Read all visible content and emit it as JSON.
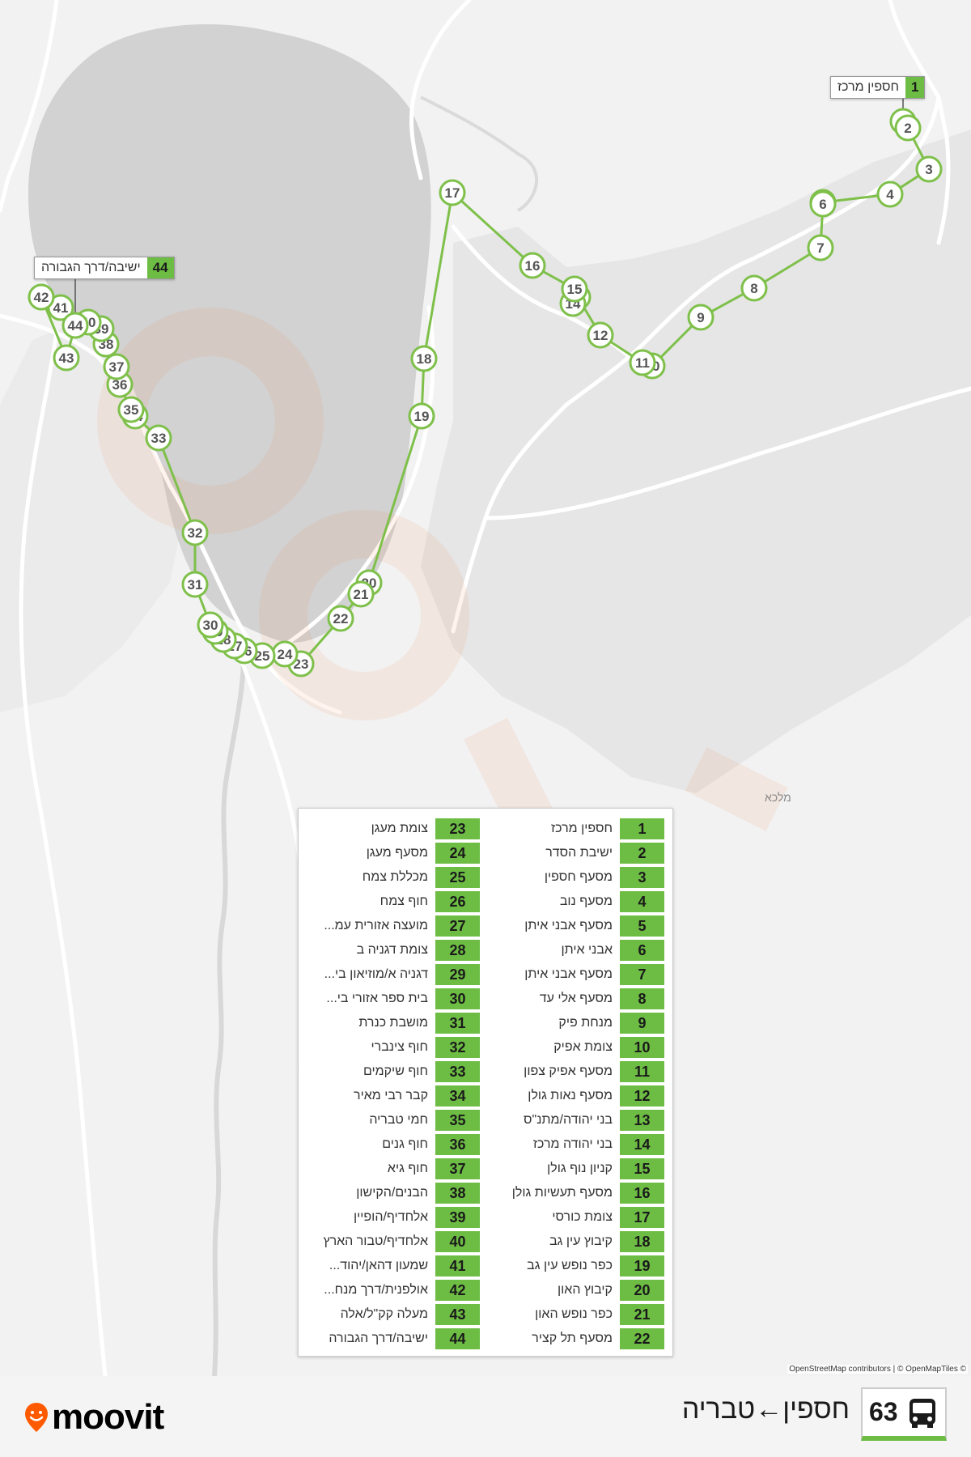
{
  "route": {
    "number": "63",
    "title": "חספין←טבריה",
    "color": "#6dbd44"
  },
  "callouts": {
    "first": {
      "number": "1",
      "name": "חספין מרכז"
    },
    "last": {
      "number": "44",
      "name": "ישיבה/דרך הגבורה"
    }
  },
  "map_labels": {
    "town": "מלכא"
  },
  "attribution": "OpenStreetMap contributors | © OpenMapTiles ©",
  "brand": {
    "name": "moovit",
    "accent": "#ff5a00"
  },
  "stops": [
    {
      "number": "1",
      "name": "חספין מרכז"
    },
    {
      "number": "2",
      "name": "ישיבת הסדר"
    },
    {
      "number": "3",
      "name": "מסעף חספין"
    },
    {
      "number": "4",
      "name": "מסעף נוב"
    },
    {
      "number": "5",
      "name": "מסעף אבני איתן"
    },
    {
      "number": "6",
      "name": "אבני איתן"
    },
    {
      "number": "7",
      "name": "מסעף אבני איתן"
    },
    {
      "number": "8",
      "name": "מסעף אלי עד"
    },
    {
      "number": "9",
      "name": "מנחת פיק"
    },
    {
      "number": "10",
      "name": "צומת אפיק"
    },
    {
      "number": "11",
      "name": "מסעף אפיק צפון"
    },
    {
      "number": "12",
      "name": "מסעף נאות גולן"
    },
    {
      "number": "13",
      "name": "בני יהודה/מתנ\"ס"
    },
    {
      "number": "14",
      "name": "בני יהודה מרכז"
    },
    {
      "number": "15",
      "name": "קניון נוף גולן"
    },
    {
      "number": "16",
      "name": "מסעף תעשיות גולן"
    },
    {
      "number": "17",
      "name": "צומת כורסי"
    },
    {
      "number": "18",
      "name": "קיבוץ עין גב"
    },
    {
      "number": "19",
      "name": "כפר נופש עין גב"
    },
    {
      "number": "20",
      "name": "קיבוץ האון"
    },
    {
      "number": "21",
      "name": "כפר נופש האון"
    },
    {
      "number": "22",
      "name": "מסעף תל קציר"
    },
    {
      "number": "23",
      "name": "צומת מעגן"
    },
    {
      "number": "24",
      "name": "מסעף מעגן"
    },
    {
      "number": "25",
      "name": "מכללת צמח"
    },
    {
      "number": "26",
      "name": "חוף צמח"
    },
    {
      "number": "27",
      "name": "מועצה אזורית עמ..."
    },
    {
      "number": "28",
      "name": "צומת דגניה ב"
    },
    {
      "number": "29",
      "name": "דגניה א/מוזיאון בי..."
    },
    {
      "number": "30",
      "name": "בית ספר אזורי בי..."
    },
    {
      "number": "31",
      "name": "מושבת כנרת"
    },
    {
      "number": "32",
      "name": "חוף צינברי"
    },
    {
      "number": "33",
      "name": "חוף שיקמים"
    },
    {
      "number": "34",
      "name": "קבר רבי מאיר"
    },
    {
      "number": "35",
      "name": "חמי טבריה"
    },
    {
      "number": "36",
      "name": "חוף גנים"
    },
    {
      "number": "37",
      "name": "חוף גיא"
    },
    {
      "number": "38",
      "name": "הבנים/הקישון"
    },
    {
      "number": "39",
      "name": "אלחדיף/הופיין"
    },
    {
      "number": "40",
      "name": "אלחדיף/טבור הארץ"
    },
    {
      "number": "41",
      "name": "שמעון דהאן/יהוד..."
    },
    {
      "number": "42",
      "name": "אולפנית/דרך מנח..."
    },
    {
      "number": "43",
      "name": "מעלה קק\"ל/אלה"
    },
    {
      "number": "44",
      "name": "ישיבה/דרך הגבורה"
    }
  ]
}
